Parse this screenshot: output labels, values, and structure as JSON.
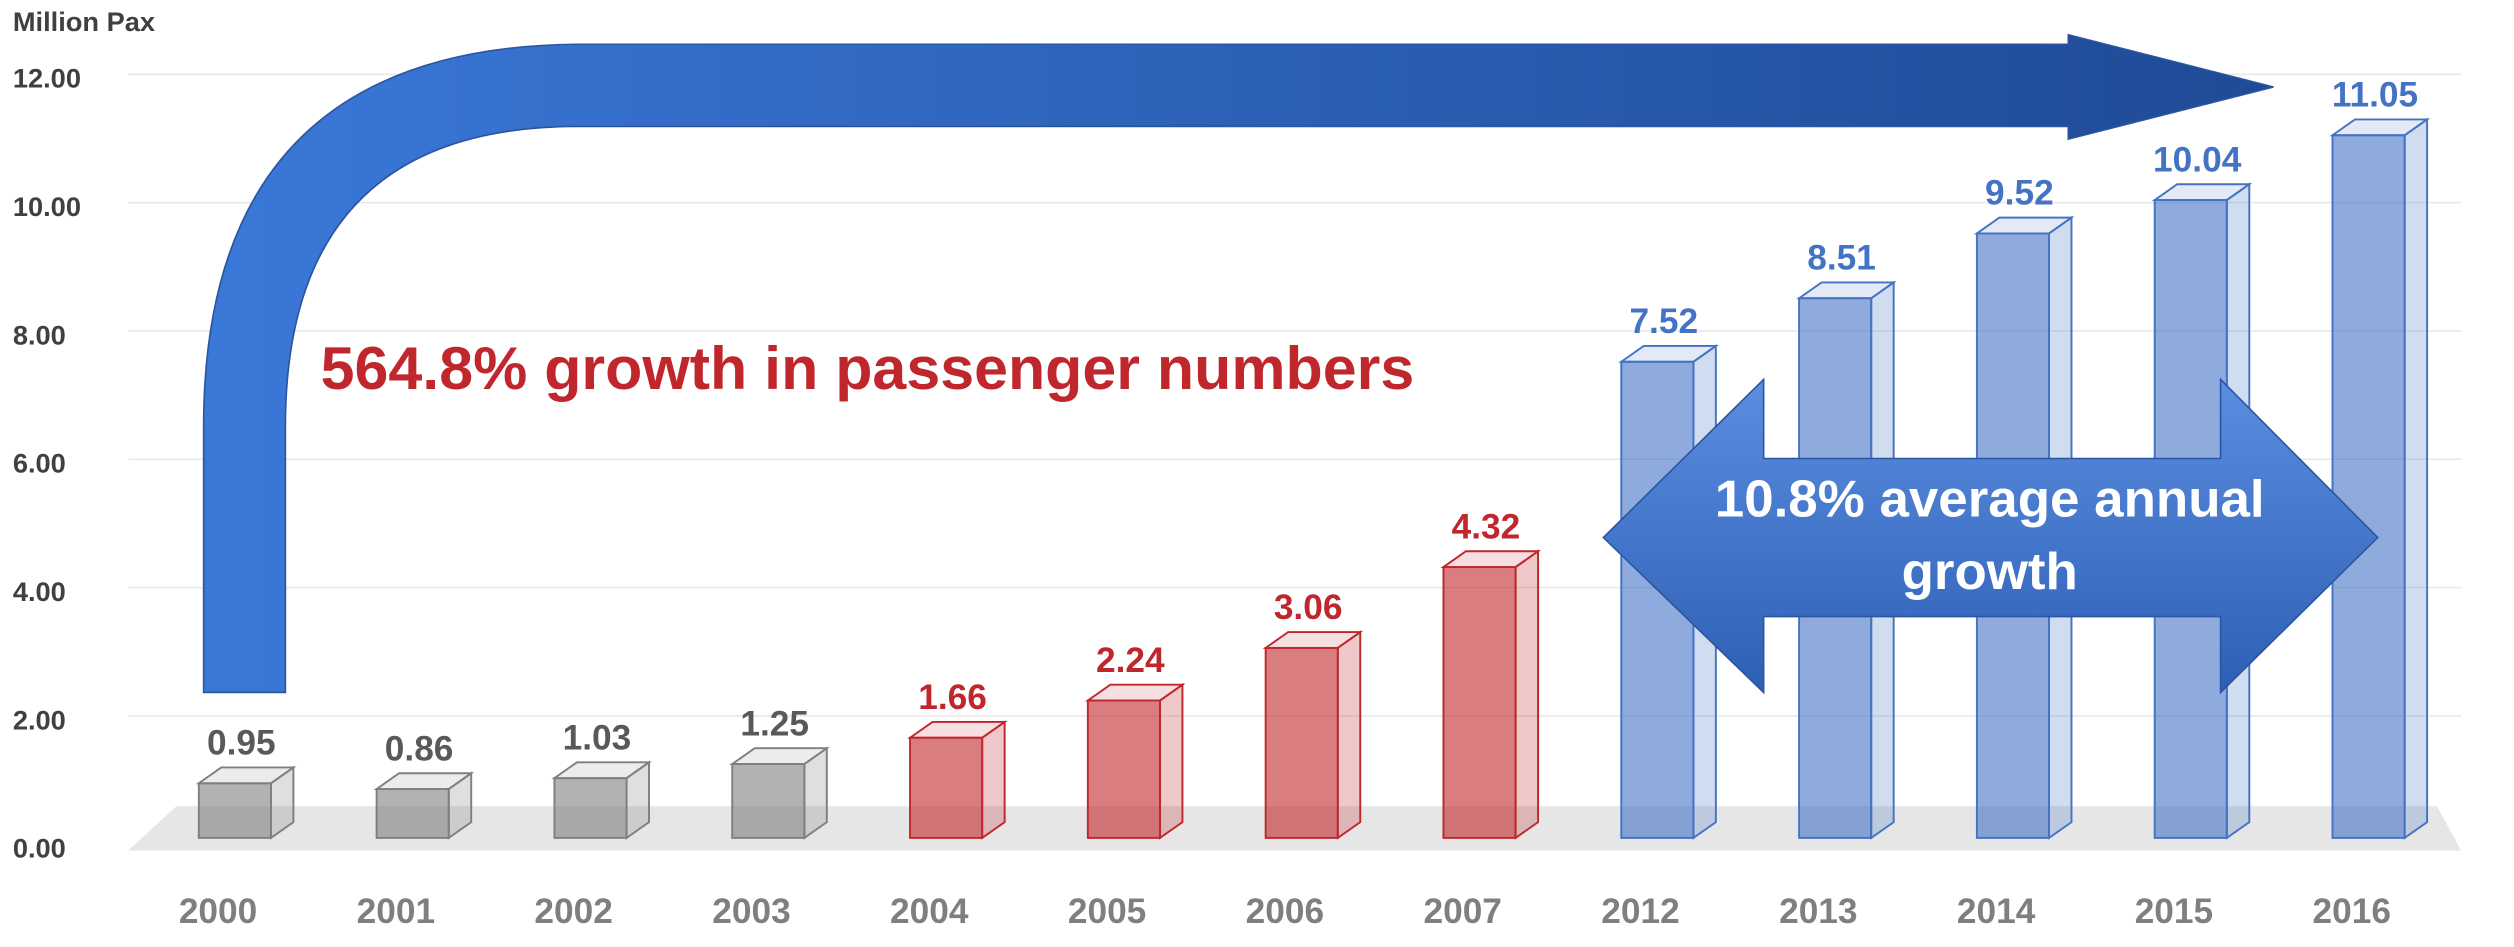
{
  "chart_data": {
    "type": "bar3d",
    "y_axis_label": "Million Pax",
    "categories": [
      "2000",
      "2001",
      "2002",
      "2003",
      "2004",
      "2005",
      "2006",
      "2007",
      "2012",
      "2013",
      "2014",
      "2015",
      "2016"
    ],
    "values": [
      0.95,
      0.86,
      1.03,
      1.25,
      1.66,
      2.24,
      3.06,
      4.32,
      7.52,
      8.51,
      9.52,
      10.04,
      11.05
    ],
    "colors": [
      "#7f7f7f",
      "#7f7f7f",
      "#7f7f7f",
      "#7f7f7f",
      "#c0272d",
      "#c0272d",
      "#c0272d",
      "#c0272d",
      "#4472c4",
      "#4472c4",
      "#4472c4",
      "#4472c4",
      "#4472c4"
    ],
    "ylim": [
      0,
      12
    ],
    "yticks": [
      {
        "value": 0,
        "label": "0.00"
      },
      {
        "value": 2,
        "label": "2.00"
      },
      {
        "value": 4,
        "label": "4.00"
      },
      {
        "value": 6,
        "label": "6.00"
      },
      {
        "value": 8,
        "label": "8.00"
      },
      {
        "value": 10,
        "label": "10.00"
      },
      {
        "value": 12,
        "label": "12.00"
      }
    ],
    "grid": true,
    "annotations": [
      "564.8% growth in passenger numbers",
      [
        "10.8% average annual",
        "growth"
      ]
    ]
  }
}
